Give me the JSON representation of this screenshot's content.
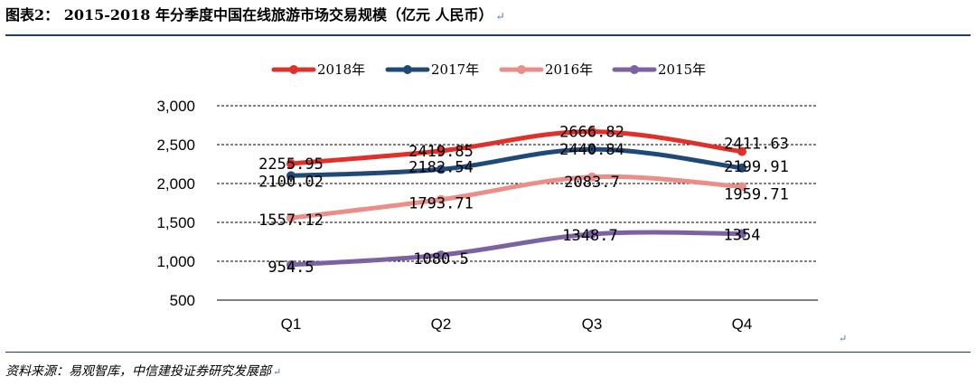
{
  "title": "图表2： 2015-2018 年分季度中国在线旅游市场交易规模（亿元  人民币）",
  "return_mark": "↵",
  "source": "资料来源：易观智库，中信建投证券研究发展部",
  "chart_data": {
    "type": "line",
    "categories": [
      "Q1",
      "Q2",
      "Q3",
      "Q4"
    ],
    "ylim": [
      500,
      3000
    ],
    "yticks": [
      500,
      1000,
      1500,
      2000,
      2500,
      3000
    ],
    "ytick_labels": [
      "500",
      "1,000",
      "1,500",
      "2,000",
      "2,500",
      "3,000"
    ],
    "grid": true,
    "legend_position": "top",
    "series": [
      {
        "name": "2018年",
        "color": "#e0302a",
        "values": [
          2255.95,
          2419.85,
          2666.82,
          2411.63
        ],
        "labels": [
          "2255.95",
          "2419.85",
          "2666.82",
          "2411.63"
        ]
      },
      {
        "name": "2017年",
        "color": "#1f4a78",
        "values": [
          2100.02,
          2182.54,
          2440.84,
          2199.91
        ],
        "labels": [
          "2100.02",
          "2182.54",
          "2440.84",
          "2199.91"
        ]
      },
      {
        "name": "2016年",
        "color": "#ec8e88",
        "values": [
          1557.12,
          1793.71,
          2083.7,
          1959.71
        ],
        "labels": [
          "1557.12",
          "1793.71",
          "2083.7",
          "1959.71"
        ]
      },
      {
        "name": "2015年",
        "color": "#7a62a3",
        "values": [
          954.5,
          1080.5,
          1348.7,
          1354
        ],
        "labels": [
          "954.5",
          "1080.5",
          "1348.7",
          "1354"
        ]
      }
    ]
  }
}
